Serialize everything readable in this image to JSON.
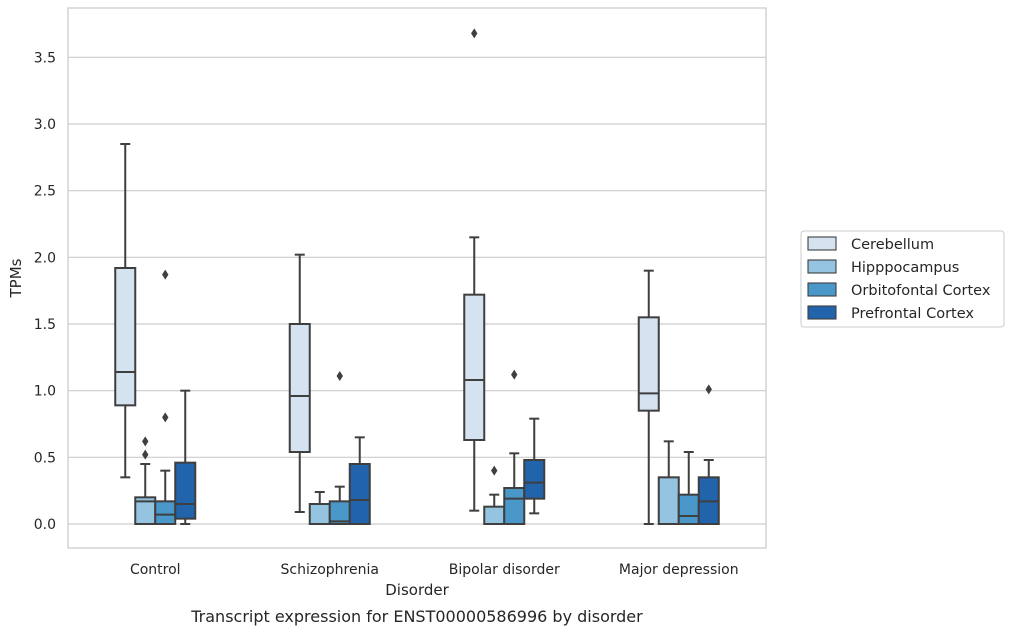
{
  "chart_data": {
    "type": "box",
    "title": "",
    "caption": "Transcript expression for ENST00000586996 by disorder",
    "xlabel": "Disorder",
    "ylabel": "TPMs",
    "ylim": [
      -0.18,
      3.87
    ],
    "yticks": [
      "0.0",
      "0.5",
      "1.0",
      "1.5",
      "2.0",
      "2.5",
      "3.0",
      "3.5"
    ],
    "categories": [
      "Control",
      "Schizophrenia",
      "Bipolar disorder",
      "Major depression"
    ],
    "grid": "horizontal",
    "legend_position": "right",
    "series": [
      {
        "name": "Cerebellum",
        "color": "#d5e3f1",
        "boxes": [
          {
            "whislo": 0.35,
            "q1": 0.89,
            "med": 1.14,
            "q3": 1.92,
            "whishi": 2.85,
            "fliers": []
          },
          {
            "whislo": 0.09,
            "q1": 0.54,
            "med": 0.96,
            "q3": 1.5,
            "whishi": 2.02,
            "fliers": []
          },
          {
            "whislo": 0.1,
            "q1": 0.63,
            "med": 1.08,
            "q3": 1.72,
            "whishi": 2.15,
            "fliers": [
              3.68
            ]
          },
          {
            "whislo": 0.0,
            "q1": 0.85,
            "med": 0.98,
            "q3": 1.55,
            "whishi": 1.9,
            "fliers": []
          }
        ]
      },
      {
        "name": "Hipppocampus",
        "color": "#94c4df",
        "boxes": [
          {
            "whislo": 0.0,
            "q1": 0.0,
            "med": 0.17,
            "q3": 0.2,
            "whishi": 0.45,
            "fliers": [
              0.52,
              0.62
            ]
          },
          {
            "whislo": 0.0,
            "q1": 0.0,
            "med": 0.0,
            "q3": 0.15,
            "whishi": 0.24,
            "fliers": []
          },
          {
            "whislo": 0.0,
            "q1": 0.0,
            "med": 0.0,
            "q3": 0.13,
            "whishi": 0.22,
            "fliers": [
              0.4
            ]
          },
          {
            "whislo": 0.0,
            "q1": 0.0,
            "med": 0.0,
            "q3": 0.35,
            "whishi": 0.62,
            "fliers": []
          }
        ]
      },
      {
        "name": "Orbitofontal Cortex",
        "color": "#4a98c9",
        "boxes": [
          {
            "whislo": 0.0,
            "q1": 0.0,
            "med": 0.07,
            "q3": 0.17,
            "whishi": 0.4,
            "fliers": [
              0.8,
              1.87
            ]
          },
          {
            "whislo": 0.0,
            "q1": 0.0,
            "med": 0.02,
            "q3": 0.17,
            "whishi": 0.28,
            "fliers": [
              1.11
            ]
          },
          {
            "whislo": 0.0,
            "q1": 0.0,
            "med": 0.19,
            "q3": 0.27,
            "whishi": 0.53,
            "fliers": [
              1.12
            ]
          },
          {
            "whislo": 0.0,
            "q1": 0.0,
            "med": 0.06,
            "q3": 0.22,
            "whishi": 0.54,
            "fliers": []
          }
        ]
      },
      {
        "name": "Prefrontal Cortex",
        "color": "#2164ab",
        "boxes": [
          {
            "whislo": 0.0,
            "q1": 0.04,
            "med": 0.15,
            "q3": 0.46,
            "whishi": 1.0,
            "fliers": []
          },
          {
            "whislo": 0.0,
            "q1": 0.0,
            "med": 0.18,
            "q3": 0.45,
            "whishi": 0.65,
            "fliers": []
          },
          {
            "whislo": 0.08,
            "q1": 0.19,
            "med": 0.31,
            "q3": 0.48,
            "whishi": 0.79,
            "fliers": []
          },
          {
            "whislo": 0.0,
            "q1": 0.0,
            "med": 0.17,
            "q3": 0.35,
            "whishi": 0.48,
            "fliers": [
              1.01
            ]
          }
        ]
      }
    ]
  }
}
